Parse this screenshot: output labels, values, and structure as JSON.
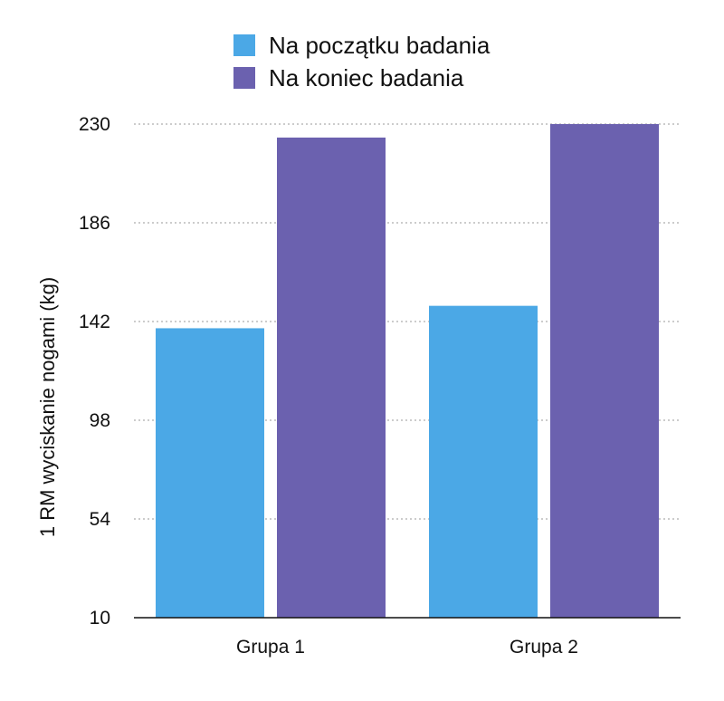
{
  "chart_data": {
    "type": "bar",
    "categories": [
      "Grupa 1",
      "Grupa 2"
    ],
    "series": [
      {
        "name": "Na początku badania",
        "color": "#4BA8E6",
        "values": [
          139,
          149
        ]
      },
      {
        "name": "Na koniec badania",
        "color": "#6B61AF",
        "values": [
          224,
          230
        ]
      }
    ],
    "title": "",
    "xlabel": "",
    "ylabel": "1 RM wyciskanie nogami (kg)",
    "ylim": [
      10,
      230
    ],
    "yticks": [
      10,
      54,
      98,
      142,
      186,
      230
    ],
    "grid": true,
    "legend_position": "top-center"
  }
}
